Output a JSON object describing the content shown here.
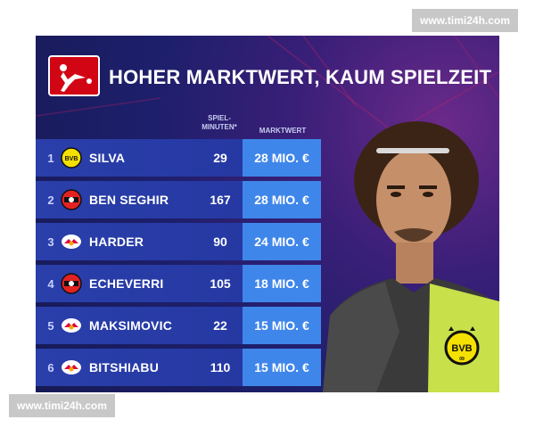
{
  "watermark": {
    "top": "www.timi24h.com",
    "bottom": "www.timi24h.com"
  },
  "header": {
    "title": "HOHER MARKTWERT, KAUM SPIELZEIT",
    "logo_icon": "bundesliga-logo-icon"
  },
  "columns": {
    "minutes": "SPIEL-\nMINUTEN*",
    "value": "MARKTWERT"
  },
  "colors": {
    "accent_value": "#3f86ea",
    "row_bg": "#2a3faa",
    "logo_red": "#d20515",
    "bvb_yellow": "#f5e100"
  },
  "rows": [
    {
      "rank": "1",
      "club_icon": "bvb-badge-icon",
      "name": "SILVA",
      "minutes": "29",
      "value": "28 MIO. €"
    },
    {
      "rank": "2",
      "club_icon": "leverkusen-badge-icon",
      "name": "BEN SEGHIR",
      "minutes": "167",
      "value": "28 MIO. €"
    },
    {
      "rank": "3",
      "club_icon": "leipzig-badge-icon",
      "name": "HARDER",
      "minutes": "90",
      "value": "24 MIO. €"
    },
    {
      "rank": "4",
      "club_icon": "leverkusen-badge-icon",
      "name": "ECHEVERRI",
      "minutes": "105",
      "value": "18 MIO. €"
    },
    {
      "rank": "5",
      "club_icon": "leipzig-badge-icon",
      "name": "MAKSIMOVIC",
      "minutes": "22",
      "value": "15 MIO. €"
    },
    {
      "rank": "6",
      "club_icon": "leipzig-badge-icon",
      "name": "BITSHIABU",
      "minutes": "110",
      "value": "15 MIO. €"
    }
  ]
}
